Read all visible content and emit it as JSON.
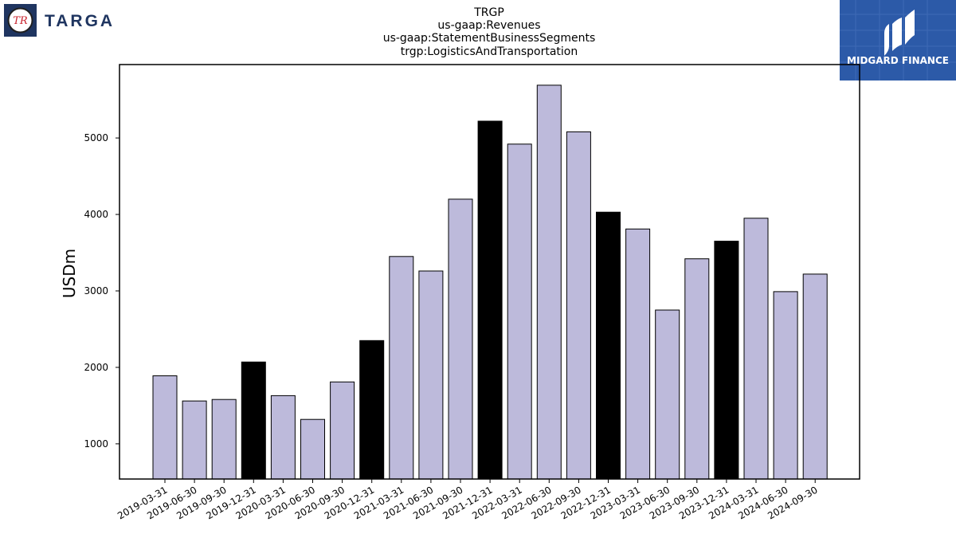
{
  "logos": {
    "left_brand": "TARGA",
    "left_mark": "TR",
    "right_brand": "MIDGARD FINANCE"
  },
  "colors": {
    "bar_default": "#bdbadb",
    "bar_highlight": "#000000",
    "bar_edge": "#000000",
    "targa_navy": "#1f3560",
    "midgard_blue": "#2c5aa8"
  },
  "chart_data": {
    "type": "bar",
    "title_lines": [
      "TRGP",
      "us-gaap:Revenues",
      "us-gaap:StatementBusinessSegments",
      "trgp:LogisticsAndTransportation"
    ],
    "xlabel": "",
    "ylabel": "USDm",
    "ylim": [
      540,
      5960
    ],
    "yticks": [
      1000,
      2000,
      3000,
      4000,
      5000
    ],
    "grid": false,
    "categories": [
      "2019-03-31",
      "2019-06-30",
      "2019-09-30",
      "2019-12-31",
      "2020-03-31",
      "2020-06-30",
      "2020-09-30",
      "2020-12-31",
      "2021-03-31",
      "2021-06-30",
      "2021-09-30",
      "2021-12-31",
      "2022-03-31",
      "2022-06-30",
      "2022-09-30",
      "2022-12-31",
      "2023-03-31",
      "2023-06-30",
      "2023-09-30",
      "2023-12-31",
      "2024-03-31",
      "2024-06-30",
      "2024-09-30"
    ],
    "values": [
      1890,
      1560,
      1580,
      2070,
      1630,
      1320,
      1810,
      2350,
      3450,
      3260,
      4200,
      5220,
      4920,
      5690,
      5080,
      4030,
      3810,
      2750,
      3420,
      3650,
      3950,
      2990,
      3220
    ],
    "highlight": [
      false,
      false,
      false,
      true,
      false,
      false,
      false,
      true,
      false,
      false,
      false,
      true,
      false,
      false,
      false,
      true,
      false,
      false,
      false,
      true,
      false,
      false,
      false
    ]
  }
}
